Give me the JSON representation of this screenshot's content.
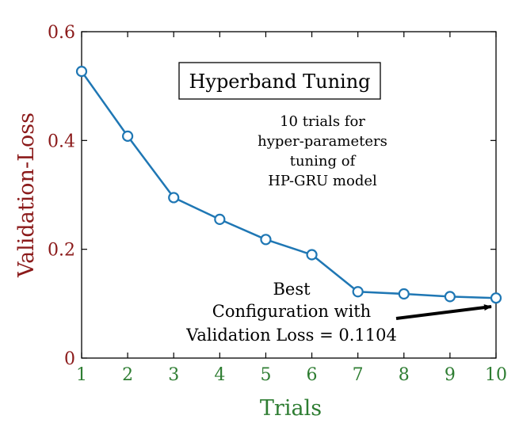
{
  "chart_data": {
    "type": "line",
    "title": "Hyperband Tuning",
    "xlabel": "Trials",
    "ylabel": "Validation-Loss",
    "x": [
      1,
      2,
      3,
      4,
      5,
      6,
      7,
      8,
      9,
      10
    ],
    "series": [
      {
        "values": [
          0.527,
          0.408,
          0.295,
          0.255,
          0.218,
          0.19,
          0.122,
          0.118,
          0.113,
          0.1104
        ]
      }
    ],
    "xlim": [
      1,
      10
    ],
    "ylim": [
      0,
      0.6
    ],
    "xticks": [
      "1",
      "2",
      "3",
      "4",
      "5",
      "6",
      "7",
      "8",
      "9",
      "10"
    ],
    "yticks": [
      {
        "value": 0,
        "label": "0"
      },
      {
        "value": 0.2,
        "label": "0.2"
      },
      {
        "value": 0.4,
        "label": "0.4"
      },
      {
        "value": 0.6,
        "label": "0.6"
      }
    ],
    "annotations": {
      "info": [
        "10 trials for",
        "hyper-parameters",
        "tuning of",
        "HP-GRU model"
      ],
      "best": [
        "Best",
        "Configuration with",
        "Validation Loss = 0.1104"
      ]
    },
    "colors": {
      "line": "#1f77b4",
      "ylabel": "#8b1a1a",
      "yticks": "#8b1a1a",
      "xlabel": "#2e7d32",
      "xticks": "#2e7d32",
      "arrow": "#000000"
    },
    "grid": false,
    "marker": "open-circle"
  }
}
